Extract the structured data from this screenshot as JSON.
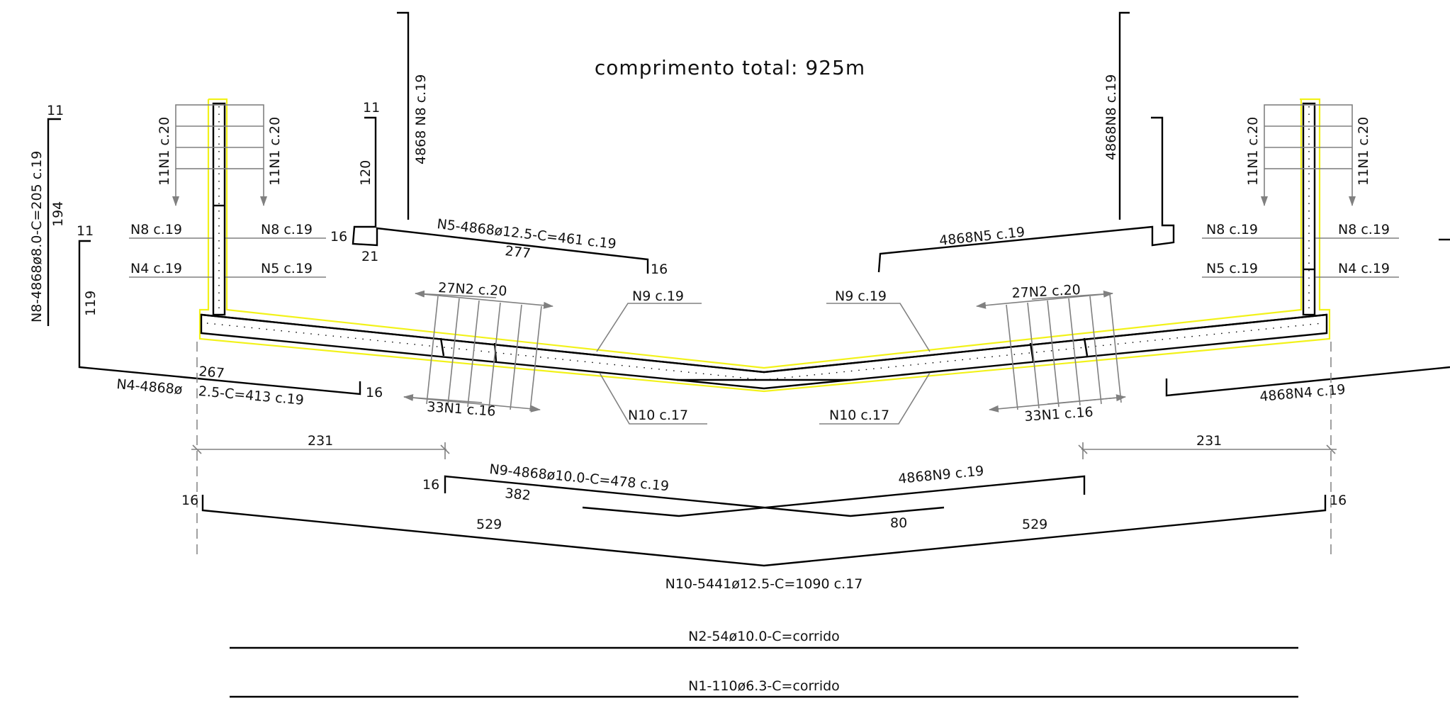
{
  "title": "comprimento total: 925m",
  "colors": {
    "outline": "#f2f21a",
    "rebar": "#000000",
    "dimension": "#808080"
  },
  "labels": {
    "n8_vertical_left": "N8-4868ø8.0-C=205 c.19",
    "n8_left_top": "11",
    "n8_left_len": "194",
    "n4_left_top": "11",
    "n4_left_len": "119",
    "stirrup_ll": "11N1 c.20",
    "stirrup_lr": "11N1 c.20",
    "stirrup_rl": "11N1 c.20",
    "stirrup_rr": "11N1 c.20",
    "n8_cl_l": "N8 c.19",
    "n8_cl_r": "N8 c.19",
    "n4_cl_l": "N4 c.19",
    "n5_cl_r": "N5 c.19",
    "n8_cr_l": "N8 c.19",
    "n8_cr_r": "N8 c.19",
    "n5_cr_l": "N5 c.19",
    "n4_cr_r": "N4 c.19",
    "n8_center_left_vert": "4868 N8 c.19",
    "n8_center_right_vert": "4868N8 c.19",
    "n5_hook_top": "11",
    "n5_hook_len": "120",
    "n5_hook_side": "16",
    "n5_hook_bottom": "21",
    "n5_main": "N5-4868ø12.5-C=461 c.19",
    "n5_len": "277",
    "n5_end": "16",
    "n5_right": "4868N5 c.19",
    "n2_left": "27N2 c.20",
    "n2_right": "27N2 c.20",
    "n1_left": "33N1 c.16",
    "n1_right": "33N1 c.16",
    "n9_left": "N9 c.19",
    "n9_right": "N9 c.19",
    "n10_left": "N10 c.17",
    "n10_right": "N10 c.17",
    "n4_len": "267",
    "n4_main_a": "N4-4868ø",
    "n4_main_b": "2.5-C=413 c.19",
    "n4_end": "16",
    "n4_right": "4868N4 c.19",
    "dim_left": "231",
    "dim_right": "231",
    "n9_end_left": "16",
    "n9_main": "N9-4868ø10.0-C=478 c.19",
    "n9_len": "382",
    "n9_right_main": "4868N9 c.19",
    "n9_overlap": "80",
    "n10_end_left": "16",
    "n10_end_right": "16",
    "n10_len_left": "529",
    "n10_len_right": "529",
    "n10_main": "N10-5441ø12.5-C=1090 c.17",
    "n2_bar": "N2-54ø10.0-C=corrido",
    "n1_bar": "N1-110ø6.3-C=corrido"
  }
}
